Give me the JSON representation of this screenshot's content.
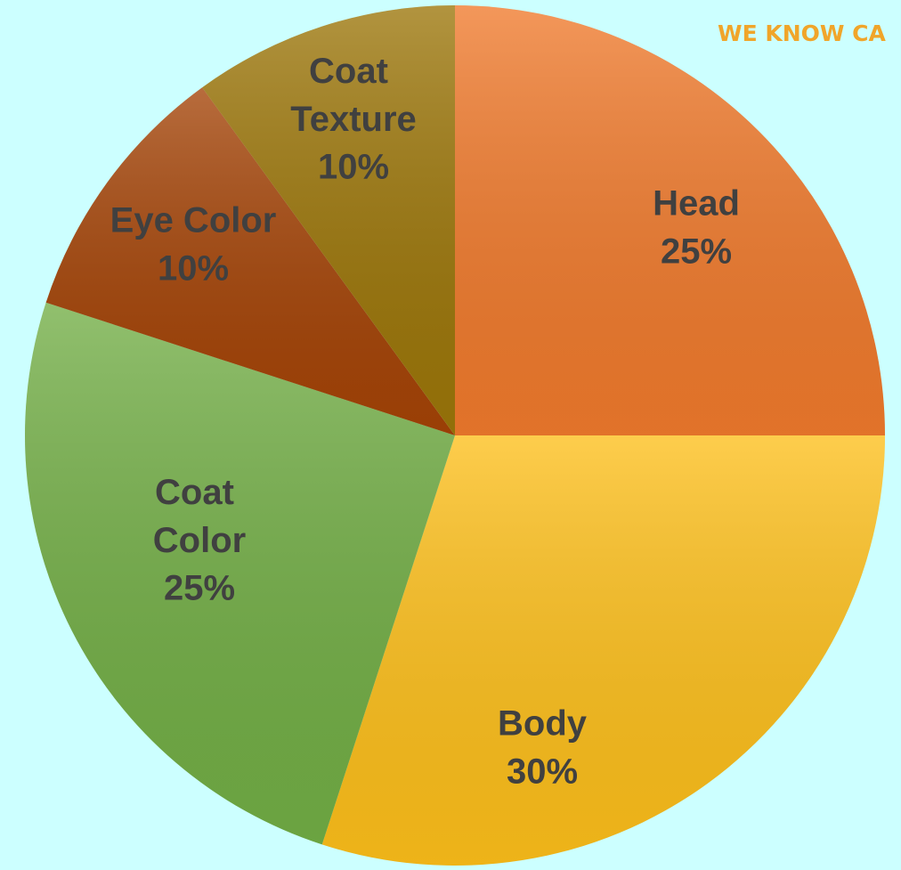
{
  "chart_data": {
    "type": "pie",
    "categories": [
      "Head",
      "Body",
      "Coat Color",
      "Eye Color",
      "Coat Texture"
    ],
    "values": [
      25,
      30,
      25,
      10,
      10
    ],
    "value_labels": [
      "25%",
      "30%",
      "25%",
      "10%",
      "10%"
    ],
    "colors": [
      "#f07a2c",
      "#fdbf1a",
      "#72ae45",
      "#a44306",
      "#9c7609"
    ],
    "logo_text": "WE KNOW CA"
  }
}
